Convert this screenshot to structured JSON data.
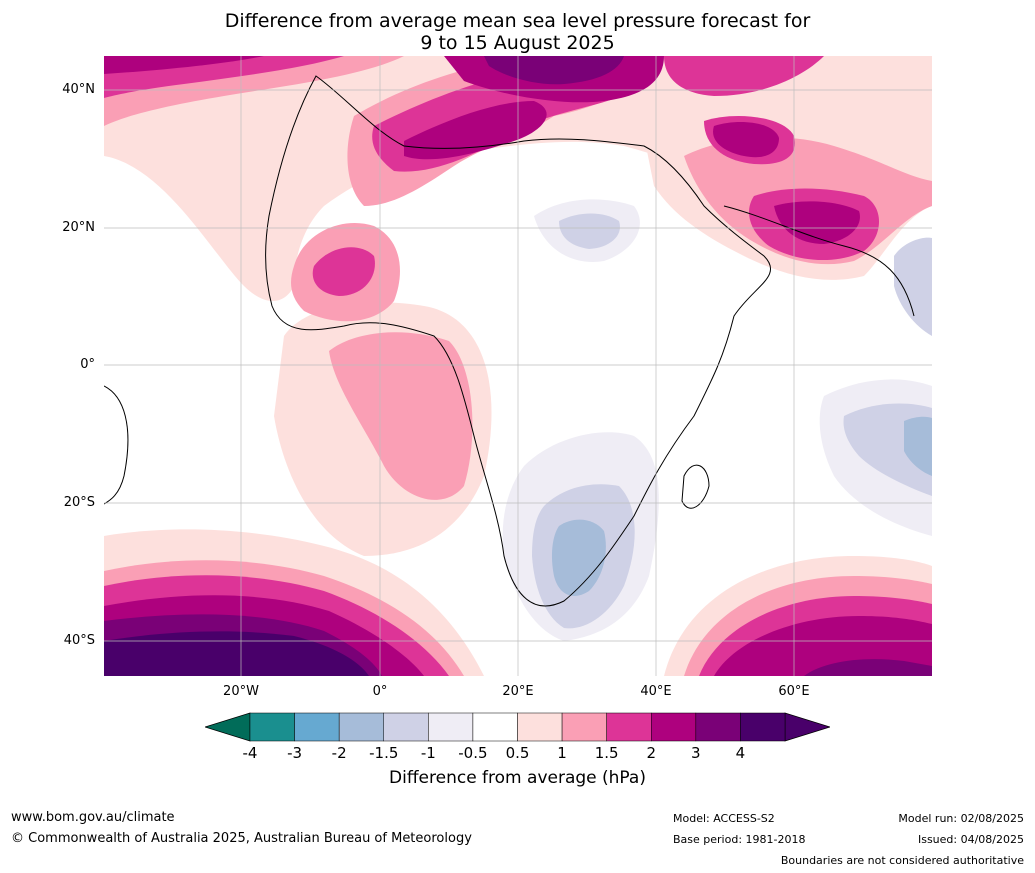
{
  "title_line1": "Difference from average mean sea level pressure forecast for",
  "title_line2": "9 to 15 August 2025",
  "lat_labels": [
    "40°N",
    "20°N",
    "0°",
    "20°S",
    "40°S"
  ],
  "lon_labels": [
    "20°W",
    "0°",
    "20°E",
    "40°E",
    "60°E"
  ],
  "colorbar": {
    "ticks": [
      "-4",
      "-3",
      "-2",
      "-1.5",
      "-1",
      "-0.5",
      "0.5",
      "1",
      "1.5",
      "2",
      "3",
      "4"
    ],
    "colors": [
      "#1a8f8f",
      "#66a9d1",
      "#a6bcd9",
      "#cfd1e6",
      "#efedf5",
      "#ffffff",
      "#fde0dd",
      "#fa9fb5",
      "#dd3497",
      "#ae017e",
      "#7a0177",
      "#49006a"
    ],
    "under_color": "#016c59",
    "label": "Difference from average (hPa)"
  },
  "footer": {
    "website": "www.bom.gov.au/climate",
    "copyright": "© Commonwealth of Australia 2025, Australian Bureau of Meteorology",
    "model": "Model: ACCESS-S2",
    "base_period": "Base period: 1981-2018",
    "model_run": "Model run: 02/08/2025",
    "issued": "Issued: 04/08/2025",
    "disclaimer": "Boundaries are not considered authoritative"
  }
}
